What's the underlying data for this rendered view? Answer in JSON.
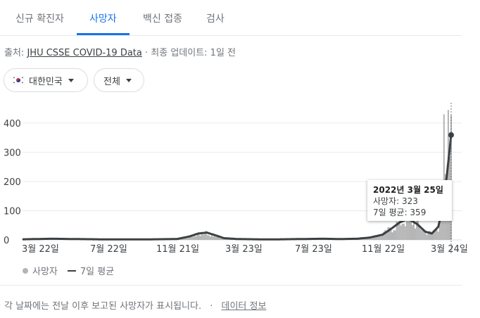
{
  "tabs": [
    {
      "label": "신규 확진자"
    },
    {
      "label": "사망자"
    },
    {
      "label": "백신 접종"
    },
    {
      "label": "검사"
    }
  ],
  "source": {
    "prefix": "출처:",
    "link": "JHU CSSE COVID-19 Data",
    "suffix": "· 최종 업데이트: 1일 전"
  },
  "filters": {
    "region": "대한민국",
    "scope": "전체"
  },
  "chart_data": {
    "type": "bar",
    "y_ticks": [
      "400",
      "300",
      "200",
      "100",
      "0"
    ],
    "x_ticks": [
      "3월 22일",
      "7월 22일",
      "11월 21일",
      "3월 23일",
      "7월 23일",
      "11월 22일",
      "3월 24일"
    ],
    "ylim": [
      0,
      460
    ],
    "series": [
      {
        "name": "사망자",
        "kind": "bars",
        "color": "#b4b4b4"
      },
      {
        "name": "7일 평균",
        "kind": "line",
        "color": "#3c4043"
      }
    ],
    "avg_curve": [
      [
        0,
        2
      ],
      [
        0.03,
        3
      ],
      [
        0.07,
        4
      ],
      [
        0.12,
        3
      ],
      [
        0.18,
        2
      ],
      [
        0.25,
        2
      ],
      [
        0.3,
        2
      ],
      [
        0.36,
        3
      ],
      [
        0.39,
        12
      ],
      [
        0.41,
        22
      ],
      [
        0.43,
        25
      ],
      [
        0.45,
        16
      ],
      [
        0.47,
        6
      ],
      [
        0.5,
        3
      ],
      [
        0.55,
        2
      ],
      [
        0.6,
        2
      ],
      [
        0.65,
        3
      ],
      [
        0.7,
        4
      ],
      [
        0.74,
        3
      ],
      [
        0.78,
        4
      ],
      [
        0.81,
        8
      ],
      [
        0.84,
        18
      ],
      [
        0.86,
        38
      ],
      [
        0.88,
        60
      ],
      [
        0.9,
        72
      ],
      [
        0.92,
        55
      ],
      [
        0.94,
        28
      ],
      [
        0.955,
        22
      ],
      [
        0.97,
        45
      ],
      [
        0.98,
        110
      ],
      [
        0.99,
        220
      ],
      [
        1.0,
        359
      ]
    ],
    "highlight": {
      "avg": 359
    }
  },
  "tooltip": {
    "date": "2022년 3월 25일",
    "deaths_label": "사망자: 323",
    "avg_label": "7일 평균: 359"
  },
  "legend": {
    "deaths": "사망자",
    "avg": "7일 평균"
  },
  "footer": {
    "note": "각 날짜에는 전날 이후 보고된 사망자가 표시됩니다.",
    "sep": "·",
    "link": "데이터 정보"
  }
}
